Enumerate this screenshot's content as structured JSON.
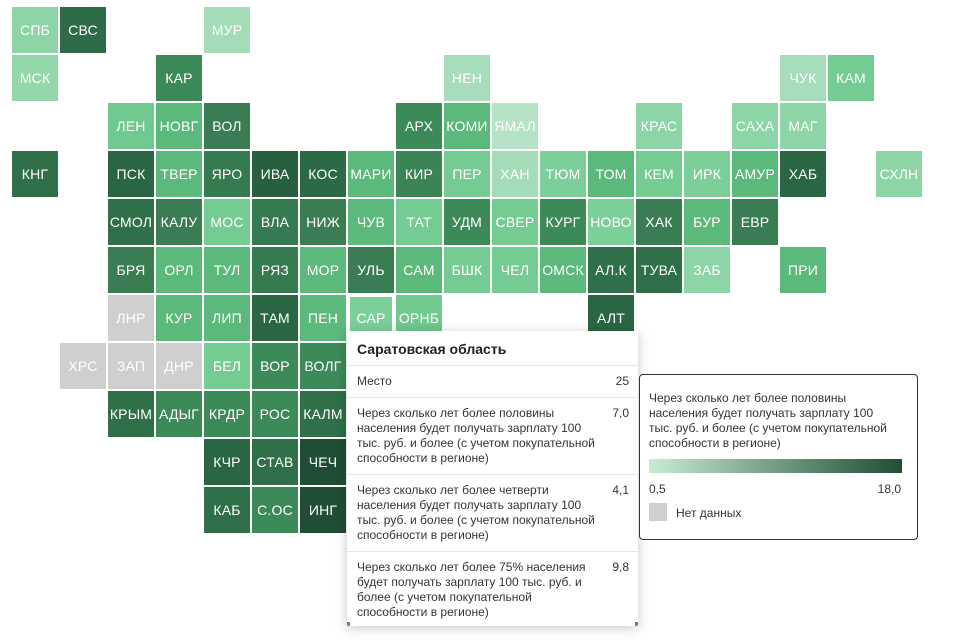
{
  "regions": [
    {
      "code": "СПБ",
      "col": 0,
      "row": 0,
      "color": "#8dd4a6"
    },
    {
      "code": "СВС",
      "col": 1,
      "row": 0,
      "color": "#2e6b47"
    },
    {
      "code": "МУР",
      "col": 4,
      "row": 0,
      "color": "#a4dcb8"
    },
    {
      "code": "МСК",
      "col": 0,
      "row": 1,
      "color": "#94d7ab"
    },
    {
      "code": "КАР",
      "col": 3,
      "row": 1,
      "color": "#3d8a59"
    },
    {
      "code": "НЕН",
      "col": 9,
      "row": 1,
      "color": "#a7ddba"
    },
    {
      "code": "ЧУК",
      "col": 16,
      "row": 1,
      "color": "#a7ddba"
    },
    {
      "code": "КАМ",
      "col": 17,
      "row": 1,
      "color": "#74cc92"
    },
    {
      "code": "ЛЕН",
      "col": 2,
      "row": 2,
      "color": "#70c98e"
    },
    {
      "code": "НОВГ",
      "col": 3,
      "row": 2,
      "color": "#5bb97c"
    },
    {
      "code": "ВОЛ",
      "col": 4,
      "row": 2,
      "color": "#3a7d52"
    },
    {
      "code": "АРХ",
      "col": 8,
      "row": 2,
      "color": "#3d8a59"
    },
    {
      "code": "КОМИ",
      "col": 9,
      "row": 2,
      "color": "#5bb97c"
    },
    {
      "code": "ЯМАЛ",
      "col": 10,
      "row": 2,
      "color": "#b6e3c5"
    },
    {
      "code": "КРАС",
      "col": 13,
      "row": 2,
      "color": "#8dd4a6"
    },
    {
      "code": "САХА",
      "col": 15,
      "row": 2,
      "color": "#8dd4a6"
    },
    {
      "code": "МАГ",
      "col": 16,
      "row": 2,
      "color": "#8dd4a6"
    },
    {
      "code": "КНГ",
      "col": 0,
      "row": 3,
      "color": "#2f7048"
    },
    {
      "code": "ПСК",
      "col": 2,
      "row": 3,
      "color": "#2b6642"
    },
    {
      "code": "ТВЕР",
      "col": 3,
      "row": 3,
      "color": "#5bb97c"
    },
    {
      "code": "ЯРО",
      "col": 4,
      "row": 3,
      "color": "#367a4f"
    },
    {
      "code": "ИВА",
      "col": 5,
      "row": 3,
      "color": "#285f3e"
    },
    {
      "code": "КОС",
      "col": 6,
      "row": 3,
      "color": "#2c6a45"
    },
    {
      "code": "МАРИ",
      "col": 7,
      "row": 3,
      "color": "#5bb97c"
    },
    {
      "code": "КИР",
      "col": 8,
      "row": 3,
      "color": "#3b8456"
    },
    {
      "code": "ПЕР",
      "col": 9,
      "row": 3,
      "color": "#74cc92"
    },
    {
      "code": "ХАН",
      "col": 10,
      "row": 3,
      "color": "#a4dcb8"
    },
    {
      "code": "ТЮМ",
      "col": 11,
      "row": 3,
      "color": "#7ccf98"
    },
    {
      "code": "ТОМ",
      "col": 12,
      "row": 3,
      "color": "#5bb97c"
    },
    {
      "code": "КЕМ",
      "col": 13,
      "row": 3,
      "color": "#74cc92"
    },
    {
      "code": "ИРК",
      "col": 14,
      "row": 3,
      "color": "#7ccf98"
    },
    {
      "code": "АМУР",
      "col": 15,
      "row": 3,
      "color": "#5bb97c"
    },
    {
      "code": "ХАБ",
      "col": 16,
      "row": 3,
      "color": "#2b6642"
    },
    {
      "code": "СХЛН",
      "col": 18,
      "row": 3,
      "color": "#8dd4a6"
    },
    {
      "code": "СМОЛ",
      "col": 2,
      "row": 4,
      "color": "#2f7048"
    },
    {
      "code": "КАЛУ",
      "col": 3,
      "row": 4,
      "color": "#3a7d52"
    },
    {
      "code": "МОС",
      "col": 4,
      "row": 4,
      "color": "#74cc92"
    },
    {
      "code": "ВЛА",
      "col": 5,
      "row": 4,
      "color": "#367a4f"
    },
    {
      "code": "НИЖ",
      "col": 6,
      "row": 4,
      "color": "#3a7d52"
    },
    {
      "code": "ЧУВ",
      "col": 7,
      "row": 4,
      "color": "#5bb97c"
    },
    {
      "code": "ТАТ",
      "col": 8,
      "row": 4,
      "color": "#74cc92"
    },
    {
      "code": "УДМ",
      "col": 9,
      "row": 4,
      "color": "#3d8a59"
    },
    {
      "code": "СВЕР",
      "col": 10,
      "row": 4,
      "color": "#74cc92"
    },
    {
      "code": "КУРГ",
      "col": 11,
      "row": 4,
      "color": "#3d8a59"
    },
    {
      "code": "НОВО",
      "col": 12,
      "row": 4,
      "color": "#7ccf98"
    },
    {
      "code": "ХАК",
      "col": 13,
      "row": 4,
      "color": "#3a7d52"
    },
    {
      "code": "БУР",
      "col": 14,
      "row": 4,
      "color": "#5bb97c"
    },
    {
      "code": "ЕВР",
      "col": 15,
      "row": 4,
      "color": "#3a7d52"
    },
    {
      "code": "БРЯ",
      "col": 2,
      "row": 5,
      "color": "#3a7d52"
    },
    {
      "code": "ОРЛ",
      "col": 3,
      "row": 5,
      "color": "#5bb97c"
    },
    {
      "code": "ТУЛ",
      "col": 4,
      "row": 5,
      "color": "#5bb97c"
    },
    {
      "code": "РЯЗ",
      "col": 5,
      "row": 5,
      "color": "#367a4f"
    },
    {
      "code": "МОР",
      "col": 6,
      "row": 5,
      "color": "#5bb97c"
    },
    {
      "code": "УЛЬ",
      "col": 7,
      "row": 5,
      "color": "#3a7d52"
    },
    {
      "code": "САМ",
      "col": 8,
      "row": 5,
      "color": "#5bb97c"
    },
    {
      "code": "БШК",
      "col": 9,
      "row": 5,
      "color": "#74cc92"
    },
    {
      "code": "ЧЕЛ",
      "col": 10,
      "row": 5,
      "color": "#74cc92"
    },
    {
      "code": "ОМСК",
      "col": 11,
      "row": 5,
      "color": "#5bb97c"
    },
    {
      "code": "АЛ.К",
      "col": 12,
      "row": 5,
      "color": "#2f7048"
    },
    {
      "code": "ТУВА",
      "col": 13,
      "row": 5,
      "color": "#2f7048"
    },
    {
      "code": "ЗАБ",
      "col": 14,
      "row": 5,
      "color": "#8dd4a6"
    },
    {
      "code": "ПРИ",
      "col": 16,
      "row": 5,
      "color": "#5bb97c"
    },
    {
      "code": "ЛНР",
      "col": 2,
      "row": 6,
      "color": "#cfcfcf"
    },
    {
      "code": "КУР",
      "col": 3,
      "row": 6,
      "color": "#5bb97c"
    },
    {
      "code": "ЛИП",
      "col": 4,
      "row": 6,
      "color": "#5bb97c"
    },
    {
      "code": "ТАМ",
      "col": 5,
      "row": 6,
      "color": "#2b6642"
    },
    {
      "code": "ПЕН",
      "col": 6,
      "row": 6,
      "color": "#5bb97c"
    },
    {
      "code": "САР",
      "col": 7,
      "row": 6,
      "color": "#7ccf98"
    },
    {
      "code": "ОРНБ",
      "col": 8,
      "row": 6,
      "color": "#70c98e"
    },
    {
      "code": "АЛТ",
      "col": 12,
      "row": 6,
      "color": "#2b6642"
    },
    {
      "code": "ХРС",
      "col": 1,
      "row": 7,
      "color": "#cfcfcf"
    },
    {
      "code": "ЗАП",
      "col": 2,
      "row": 7,
      "color": "#cfcfcf"
    },
    {
      "code": "ДНР",
      "col": 3,
      "row": 7,
      "color": "#cfcfcf"
    },
    {
      "code": "БЕЛ",
      "col": 4,
      "row": 7,
      "color": "#74cc92"
    },
    {
      "code": "ВОР",
      "col": 5,
      "row": 7,
      "color": "#3d8a59"
    },
    {
      "code": "ВОЛГ",
      "col": 6,
      "row": 7,
      "color": "#3d8a59"
    },
    {
      "code": "КРЫМ",
      "col": 2,
      "row": 8,
      "color": "#2f7048"
    },
    {
      "code": "АДЫГ",
      "col": 3,
      "row": 8,
      "color": "#3d8a59"
    },
    {
      "code": "КРДР",
      "col": 4,
      "row": 8,
      "color": "#3d8a59"
    },
    {
      "code": "РОС",
      "col": 5,
      "row": 8,
      "color": "#3d8a59"
    },
    {
      "code": "КАЛМ",
      "col": 6,
      "row": 8,
      "color": "#2f7048"
    },
    {
      "code": "КЧР",
      "col": 4,
      "row": 9,
      "color": "#2b6642"
    },
    {
      "code": "СТАВ",
      "col": 5,
      "row": 9,
      "color": "#2f7048"
    },
    {
      "code": "ЧЕЧ",
      "col": 6,
      "row": 9,
      "color": "#1f4e35"
    },
    {
      "code": "КАБ",
      "col": 4,
      "row": 10,
      "color": "#2f7048"
    },
    {
      "code": "С.ОС",
      "col": 5,
      "row": 10,
      "color": "#3d8a59"
    },
    {
      "code": "ИНГ",
      "col": 6,
      "row": 10,
      "color": "#1f4e35"
    }
  ],
  "hovered_region": "САР",
  "tooltip": {
    "title": "Саратовская область",
    "rows": [
      {
        "label": "Место",
        "value": "25"
      },
      {
        "label": "Через сколько лет более половины населения будет получать зарплату 100 тыс. руб. и более (с учетом покупательной способности в регионе)",
        "value": "7,0"
      },
      {
        "label": "Через сколько лет более четверти населения будет получать зарплату 100 тыс. руб. и более (с учетом покупательной способности в регионе)",
        "value": "4,1"
      },
      {
        "label": "Через сколько лет более 75% населения будет получать зарплату 100 тыс. руб. и более (с учетом покупательной способности в регионе)",
        "value": "9,8"
      }
    ]
  },
  "legend": {
    "title": "Через сколько лет более половины населения будет получать зарплату 100 тыс. руб. и более (с учетом покупательной способности в регионе)",
    "min_label": "0,5",
    "max_label": "18,0",
    "gradient_start": "#c8ebd3",
    "gradient_end": "#1f4e35",
    "no_data_label": "Нет данных",
    "no_data_color": "#cfcfcf"
  }
}
